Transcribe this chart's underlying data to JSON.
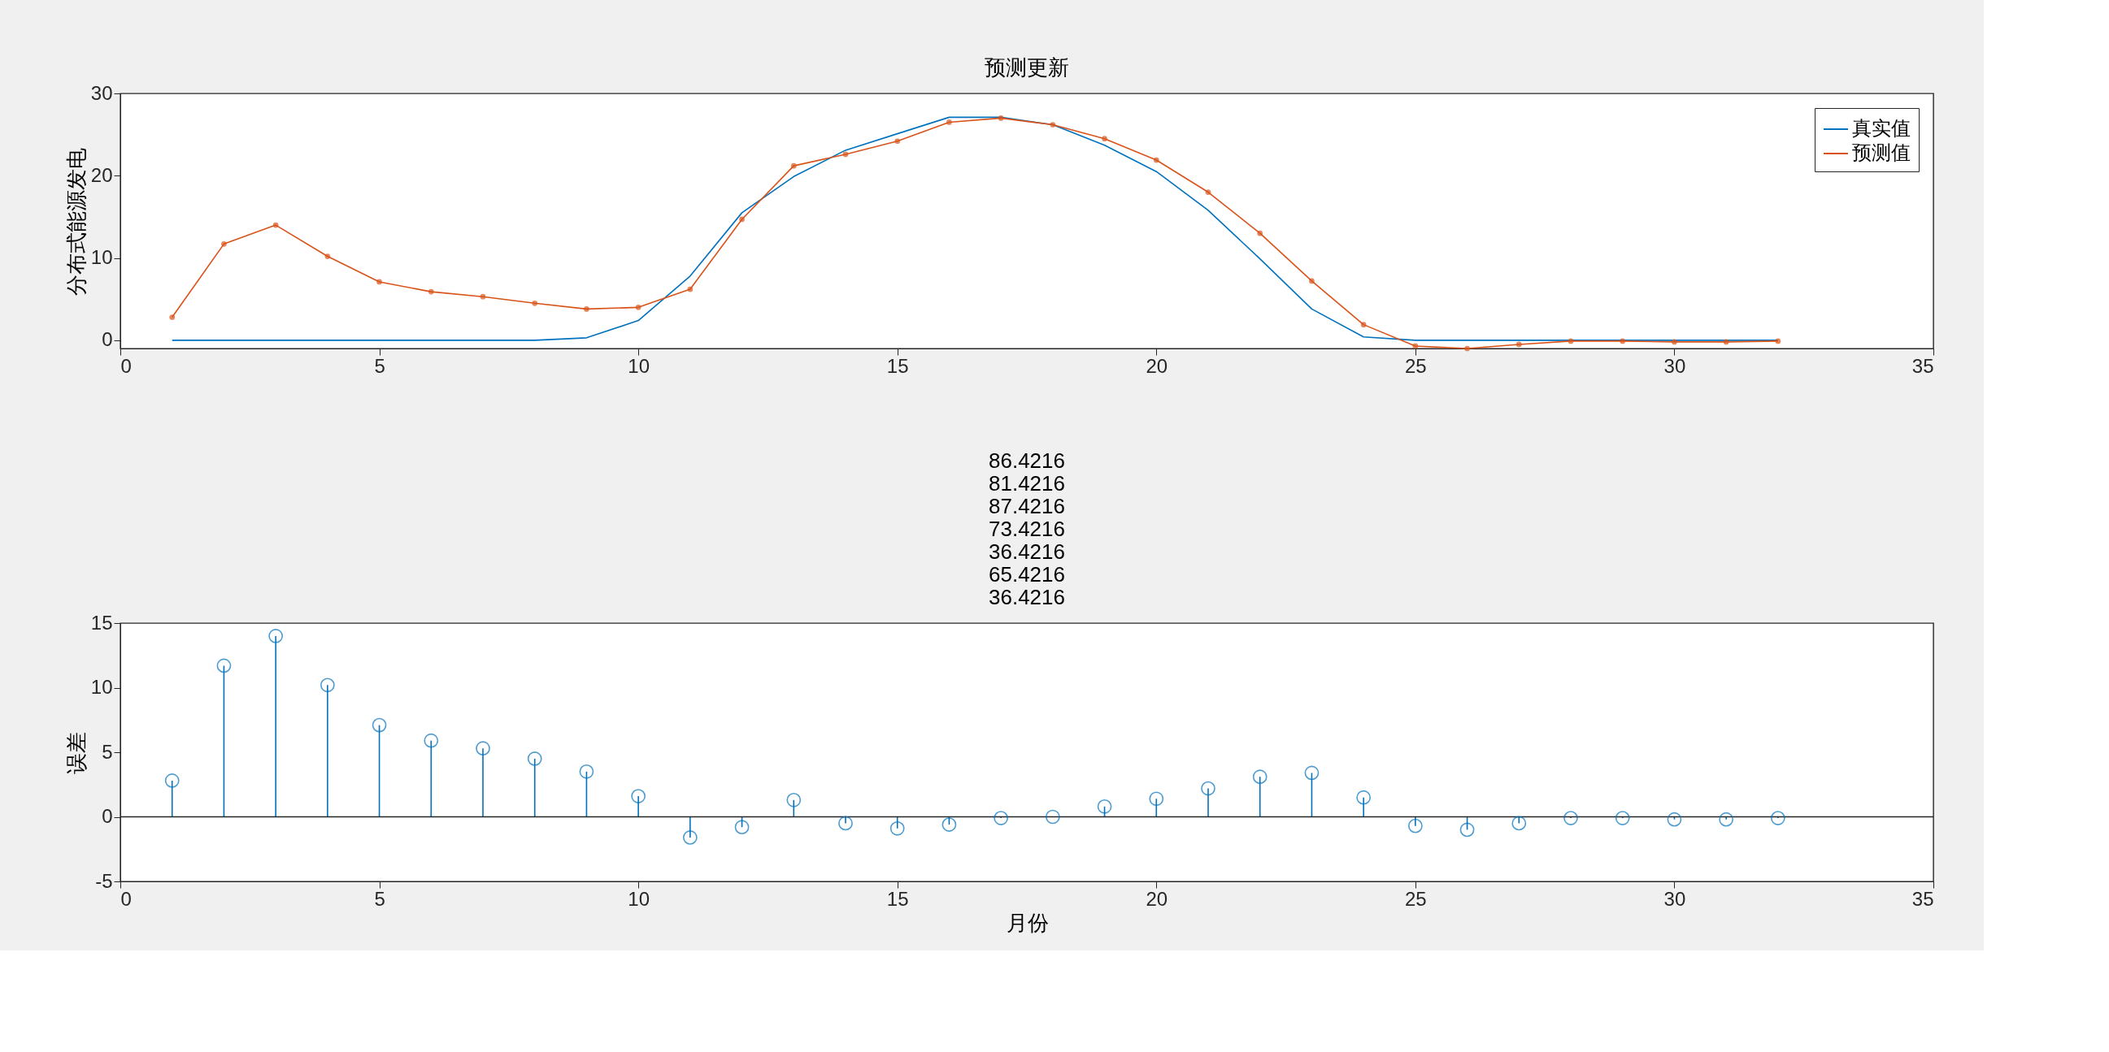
{
  "chart_data": [
    {
      "type": "line",
      "title": "预测更新",
      "ylabel": "分布式能源发电",
      "x": [
        1,
        2,
        3,
        4,
        5,
        6,
        7,
        8,
        9,
        10,
        11,
        12,
        13,
        14,
        15,
        16,
        17,
        18,
        19,
        20,
        21,
        22,
        23,
        24,
        25,
        26,
        27,
        28,
        29,
        30,
        31,
        32
      ],
      "series": [
        {
          "name": "真实值",
          "color": "#0072bd",
          "marker": "none",
          "values": [
            0,
            0,
            0,
            0,
            0,
            0,
            0,
            0,
            0.3,
            2.4,
            7.8,
            15.5,
            19.9,
            23.1,
            25.1,
            27.1,
            27.1,
            26.2,
            23.7,
            20.5,
            15.8,
            9.9,
            3.8,
            0.4,
            0,
            0,
            0,
            0,
            0,
            0,
            0,
            0
          ]
        },
        {
          "name": "预测值",
          "color": "#d95319",
          "marker": "circle",
          "values": [
            2.8,
            11.7,
            14.0,
            10.2,
            7.1,
            5.9,
            5.3,
            4.5,
            3.8,
            4.0,
            6.2,
            14.7,
            21.2,
            22.6,
            24.2,
            26.5,
            27.0,
            26.2,
            24.5,
            21.9,
            18.0,
            13.0,
            7.2,
            1.9,
            -0.7,
            -1.0,
            -0.5,
            -0.1,
            -0.1,
            -0.2,
            -0.2,
            -0.1
          ]
        }
      ],
      "xlim": [
        0,
        35
      ],
      "xticks": [
        0,
        5,
        10,
        15,
        20,
        25,
        30,
        35
      ],
      "ylim": [
        -1,
        30
      ],
      "yticks": [
        0,
        10,
        20,
        30
      ],
      "legend": "top right",
      "grid": false
    },
    {
      "type": "lollipop",
      "title": "86.4216\n81.4216\n87.4216\n73.4216\n36.4216\n65.4216\n36.4216",
      "xlabel": "月份",
      "ylabel": "误差",
      "x": [
        1,
        2,
        3,
        4,
        5,
        6,
        7,
        8,
        9,
        10,
        11,
        12,
        13,
        14,
        15,
        16,
        17,
        18,
        19,
        20,
        21,
        22,
        23,
        24,
        25,
        26,
        27,
        28,
        29,
        30,
        31,
        32
      ],
      "series": [
        {
          "color": "#0072bd",
          "marker": "circle",
          "values": [
            2.8,
            11.7,
            14.0,
            10.2,
            7.1,
            5.9,
            5.3,
            4.5,
            3.5,
            1.6,
            -1.6,
            -0.8,
            1.3,
            -0.5,
            -0.9,
            -0.6,
            -0.1,
            0.0,
            0.8,
            1.4,
            2.2,
            3.1,
            3.4,
            1.5,
            -0.7,
            -1.0,
            -0.5,
            -0.1,
            -0.1,
            -0.2,
            -0.2,
            -0.1
          ]
        }
      ],
      "ref_lines": [
        {
          "axis": "y",
          "value": 0,
          "color": "#262626"
        }
      ],
      "xlim": [
        0,
        35
      ],
      "xticks": [
        0,
        5,
        10,
        15,
        20,
        25,
        30,
        35
      ],
      "ylim": [
        -5,
        15
      ],
      "yticks": [
        -5,
        0,
        5,
        10,
        15
      ],
      "grid": false
    }
  ]
}
